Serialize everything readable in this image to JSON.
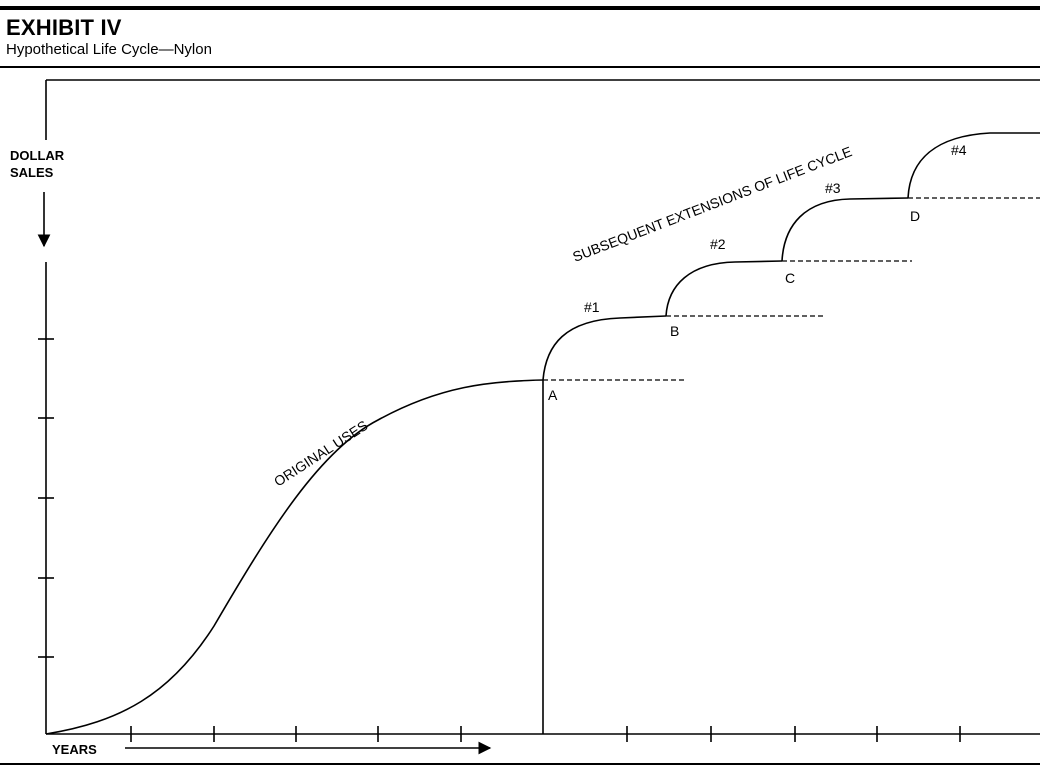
{
  "header": {
    "title": "EXHIBIT IV",
    "subtitle": "Hypothetical Life Cycle—Nylon"
  },
  "axes": {
    "y_label_line1": "DOLLAR",
    "y_label_line2": "SALES",
    "x_label": "YEARS"
  },
  "curve_labels": {
    "original": "ORIGINAL USES",
    "extensions": "SUBSEQUENT EXTENSIONS OF LIFE CYCLE"
  },
  "extensions": [
    {
      "number": "#1",
      "point": "A"
    },
    {
      "number": "#2",
      "point": "B"
    },
    {
      "number": "#3",
      "point": "C"
    },
    {
      "number": "#4",
      "point": "D"
    }
  ]
}
